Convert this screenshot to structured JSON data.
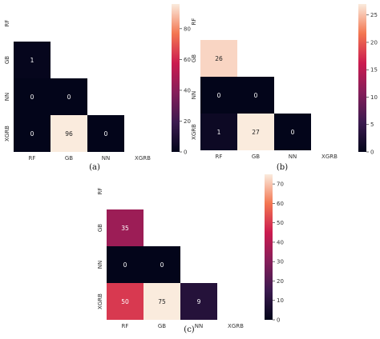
{
  "chart_data": [
    {
      "type": "heatmap",
      "caption": "(a)",
      "x_labels": [
        "RF",
        "GB",
        "NN",
        "XGRB"
      ],
      "y_labels": [
        "RF",
        "GB",
        "NN",
        "XGRB"
      ],
      "cells": [
        {
          "row": "GB",
          "col": "RF",
          "value": 1
        },
        {
          "row": "NN",
          "col": "RF",
          "value": 0
        },
        {
          "row": "NN",
          "col": "GB",
          "value": 0
        },
        {
          "row": "XGRB",
          "col": "RF",
          "value": 0
        },
        {
          "row": "XGRB",
          "col": "GB",
          "value": 96
        },
        {
          "row": "XGRB",
          "col": "NN",
          "value": 0
        }
      ],
      "colorbar": {
        "min": 0,
        "max": 96,
        "ticks": [
          0,
          20,
          40,
          60,
          80
        ]
      }
    },
    {
      "type": "heatmap",
      "caption": "(b)",
      "x_labels": [
        "RF",
        "GB",
        "NN",
        "XGRB"
      ],
      "y_labels": [
        "RF",
        "GB",
        "NN",
        "XGRB"
      ],
      "cells": [
        {
          "row": "GB",
          "col": "RF",
          "value": 26
        },
        {
          "row": "NN",
          "col": "RF",
          "value": 0
        },
        {
          "row": "NN",
          "col": "GB",
          "value": 0
        },
        {
          "row": "XGRB",
          "col": "RF",
          "value": 1
        },
        {
          "row": "XGRB",
          "col": "GB",
          "value": 27
        },
        {
          "row": "XGRB",
          "col": "NN",
          "value": 0
        }
      ],
      "colorbar": {
        "min": 0,
        "max": 27,
        "ticks": [
          0,
          5,
          10,
          15,
          20,
          25
        ]
      }
    },
    {
      "type": "heatmap",
      "caption": "(c)",
      "x_labels": [
        "RF",
        "GB",
        "NN",
        "XGRB"
      ],
      "y_labels": [
        "RF",
        "GB",
        "NN",
        "XGRB"
      ],
      "cells": [
        {
          "row": "GB",
          "col": "RF",
          "value": 35
        },
        {
          "row": "NN",
          "col": "RF",
          "value": 0
        },
        {
          "row": "NN",
          "col": "GB",
          "value": 0
        },
        {
          "row": "XGRB",
          "col": "RF",
          "value": 50
        },
        {
          "row": "XGRB",
          "col": "GB",
          "value": 75
        },
        {
          "row": "XGRB",
          "col": "NN",
          "value": 9
        }
      ],
      "colorbar": {
        "min": 0,
        "max": 75,
        "ticks": [
          0,
          10,
          20,
          30,
          40,
          50,
          60,
          70
        ]
      }
    }
  ]
}
